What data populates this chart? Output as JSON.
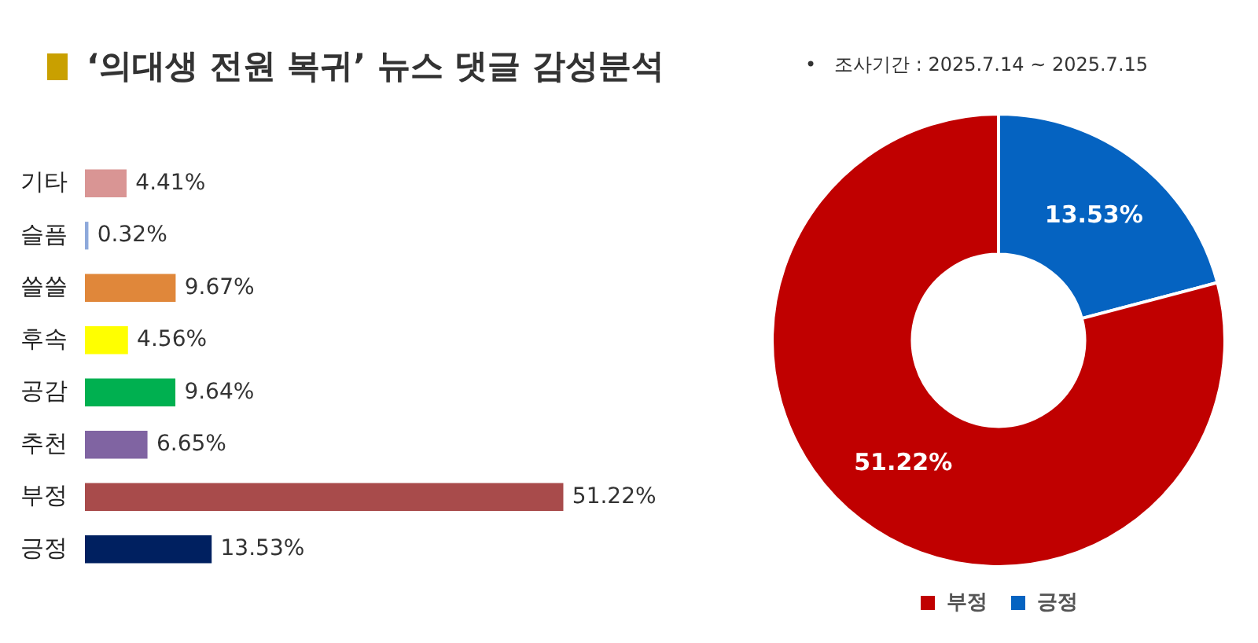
{
  "chart_data": [
    {
      "type": "bar",
      "title": "‘의대생 전원 복귀’ 뉴스 댓글 감성분석",
      "orientation": "horizontal",
      "categories": [
        "기타",
        "슬픔",
        "쓸쓸",
        "후속",
        "공감",
        "추천",
        "부정",
        "긍정"
      ],
      "values": [
        4.41,
        0.32,
        9.67,
        4.56,
        9.64,
        6.65,
        51.22,
        13.53
      ],
      "colors": [
        "#d99594",
        "#8ea9db",
        "#e0873a",
        "#ffff00",
        "#00b050",
        "#8064a2",
        "#a84b4b",
        "#002060"
      ],
      "value_labels": [
        "4.41%",
        "0.32%",
        "9.67%",
        "4.56%",
        "9.64%",
        "6.65%",
        "51.22%",
        "13.53%"
      ],
      "legend": false
    },
    {
      "type": "donut",
      "categories": [
        "긍정",
        "부정"
      ],
      "values": [
        13.53,
        51.22
      ],
      "colors": [
        "#0563c1",
        "#c00000"
      ],
      "value_labels": [
        "13.53%",
        "51.22%"
      ],
      "legend": "bottom",
      "annotations": [
        "•   조사기간 : 2025.7.14 ~ 2025.7.15"
      ]
    }
  ]
}
